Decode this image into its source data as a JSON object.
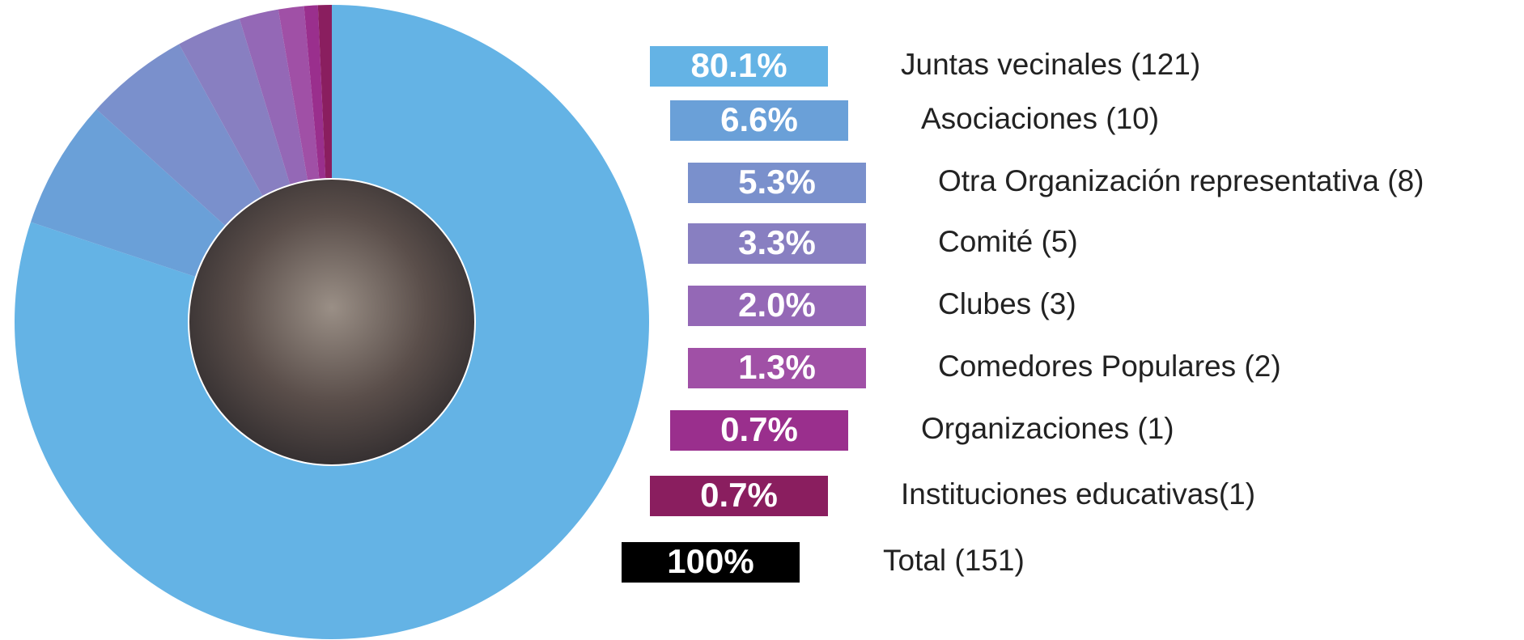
{
  "chart_data": {
    "type": "donut",
    "categories": [
      "Juntas vecinales (121)",
      "Asociaciones (10)",
      "Otra Organización representativa (8)",
      "Comité (5)",
      "Clubes (3)",
      "Comedores Populares (2)",
      "Organizaciones (1)",
      "Instituciones educativas(1)"
    ],
    "values": [
      80.1,
      6.6,
      5.3,
      3.3,
      2.0,
      1.3,
      0.7,
      0.7
    ],
    "value_labels": [
      "80.1%",
      "6.6%",
      "5.3%",
      "3.3%",
      "2.0%",
      "1.3%",
      "0.7%",
      "0.7%"
    ],
    "colors": [
      "#64b3e5",
      "#6aa0d8",
      "#7a90cc",
      "#887fc1",
      "#9468b6",
      "#a050a6",
      "#9a2f8d",
      "#8a1e5f"
    ],
    "total_label": "100%",
    "total_name": "Total (151)"
  }
}
